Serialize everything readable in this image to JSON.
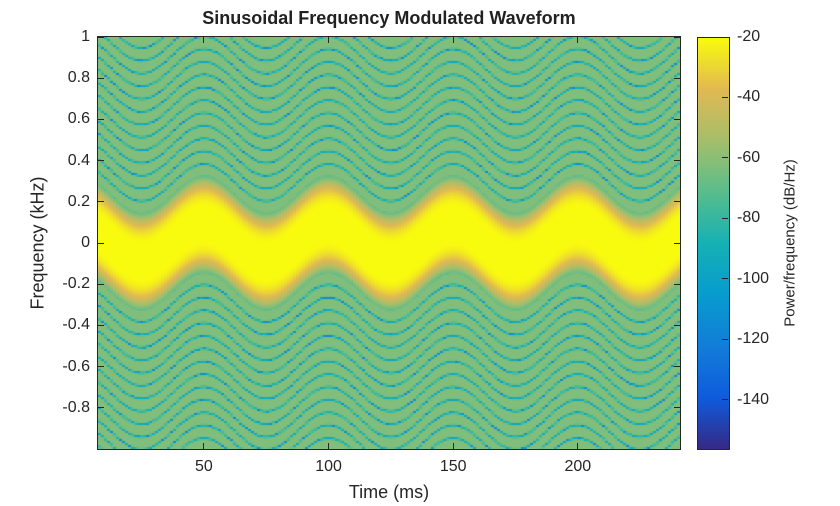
{
  "chart_data": {
    "type": "heatmap",
    "title": "Sinusoidal Frequency Modulated Waveform",
    "xlabel": "Time (ms)",
    "ylabel": "Frequency (kHz)",
    "xlim": [
      7.5,
      241
    ],
    "ylim": [
      -1,
      1
    ],
    "xticks": [
      50,
      100,
      150,
      200
    ],
    "xtick_labels": [
      "50",
      "100",
      "150",
      "200"
    ],
    "yticks": [
      1,
      0.8,
      0.6,
      0.4,
      0.2,
      0,
      -0.2,
      -0.4,
      -0.6,
      -0.8
    ],
    "ytick_labels": [
      "1",
      "0.8",
      "0.6",
      "0.4",
      "0.2",
      "0",
      "-0.2",
      "-0.4",
      "-0.6",
      "-0.8"
    ],
    "colorbar": {
      "label": "Power/frequency (dB/Hz)",
      "clim": [
        -156,
        -20
      ],
      "ticks": [
        -20,
        -40,
        -60,
        -80,
        -100,
        -120,
        -140
      ],
      "tick_labels": [
        "-20",
        "-40",
        "-60",
        "-80",
        "-100",
        "-120",
        "-140"
      ],
      "colormap": "parula"
    },
    "signal": {
      "carrier_khz": 0,
      "modulation_period_ms": 50,
      "first_peak_ms": 50,
      "deviation_khz": 0.09,
      "peak_power_db": -20,
      "floor_power_db": -60,
      "null_power_db": -95
    },
    "grid": false
  }
}
